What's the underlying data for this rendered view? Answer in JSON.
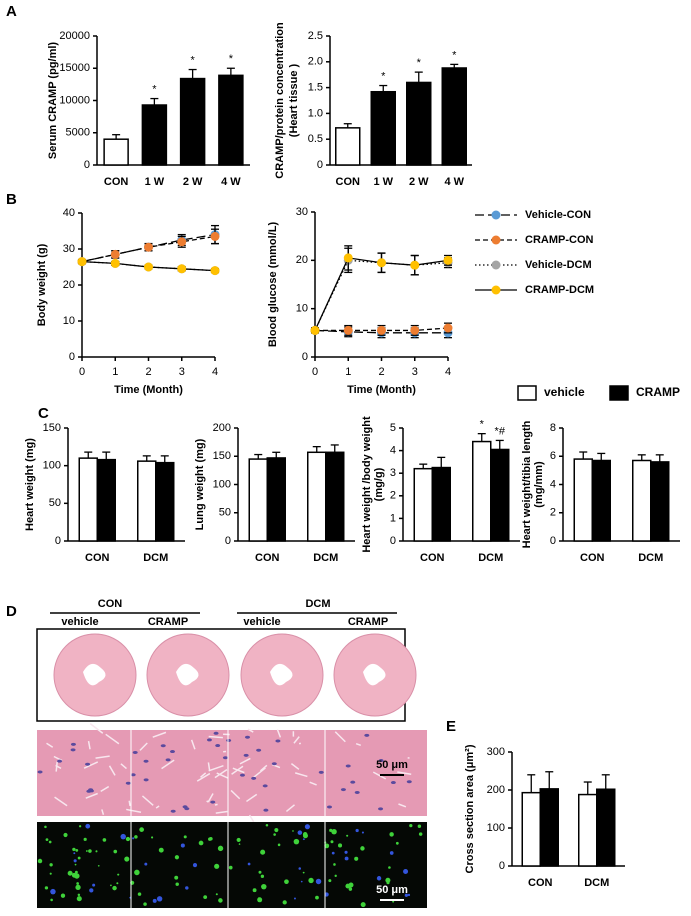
{
  "panels": [
    "A",
    "B",
    "C",
    "D",
    "E"
  ],
  "chart_data": [
    {
      "type": "bar",
      "ylabel": [
        "Serum CRAMP (pg/ml)"
      ],
      "categories": [
        "CON",
        "1 W",
        "2 W",
        "4 W"
      ],
      "values": [
        4000,
        9300,
        13400,
        13900
      ],
      "errors": [
        700,
        1000,
        1400,
        1100
      ],
      "colors": [
        "#ffffff",
        "#000000",
        "#000000",
        "#000000"
      ],
      "sig_labels": [
        null,
        "*",
        "*",
        "*"
      ],
      "ylim": [
        0,
        20000
      ],
      "yticks": [
        0,
        5000,
        10000,
        15000,
        20000
      ]
    },
    {
      "type": "bar",
      "ylabel": [
        "CRAMP/protein concentration",
        "(Heart tissue )"
      ],
      "categories": [
        "CON",
        "1 W",
        "2 W",
        "4 W"
      ],
      "values": [
        0.72,
        1.42,
        1.6,
        1.88
      ],
      "errors": [
        0.08,
        0.12,
        0.2,
        0.07
      ],
      "colors": [
        "#ffffff",
        "#000000",
        "#000000",
        "#000000"
      ],
      "sig_labels": [
        null,
        "*",
        "*",
        "*"
      ],
      "ylim": [
        0,
        2.5
      ],
      "yticks": [
        0,
        0.5,
        {
          "value": 1,
          "label": "1.0"
        },
        1.5,
        {
          "value": 2,
          "label": "2.0"
        },
        2.5
      ]
    },
    {
      "type": "line",
      "ylabel": [
        "Body weight (g)"
      ],
      "xlabel": "Time (Month)",
      "x": [
        0,
        1,
        2,
        3,
        4
      ],
      "xlim": [
        0,
        4
      ],
      "xticks": [
        0,
        1,
        2,
        3,
        4
      ],
      "ylim": [
        0,
        40
      ],
      "yticks": [
        0,
        10,
        20,
        30,
        40
      ],
      "series": [
        {
          "color": "#5b9bd5",
          "dash": "long-dash",
          "values": [
            26.5,
            28.5,
            30.5,
            32.5,
            34
          ],
          "errors": [
            0.5,
            1,
            1,
            1.5,
            2.5
          ]
        },
        {
          "color": "#ed7d31",
          "dash": "dash",
          "values": [
            26.5,
            28.5,
            30.5,
            32,
            33.5
          ],
          "errors": [
            0.5,
            1,
            1,
            1.5,
            2
          ]
        },
        {
          "color": "#a5a5a5",
          "dash": "dot",
          "values": [
            26.5,
            26,
            25,
            24.5,
            24
          ],
          "errors": [
            0.5,
            0.5,
            0.5,
            0.5,
            0.5
          ]
        },
        {
          "color": "#ffc000",
          "dash": "solid",
          "values": [
            26.5,
            26,
            25,
            24.5,
            24
          ],
          "errors": [
            0.5,
            0.5,
            0.5,
            0.5,
            0.5
          ]
        }
      ]
    },
    {
      "type": "line",
      "ylabel": [
        "Blood glucose (mmol/L)"
      ],
      "xlabel": "Time (Month)",
      "x": [
        0,
        1,
        2,
        3,
        4
      ],
      "xlim": [
        0,
        4
      ],
      "xticks": [
        0,
        1,
        2,
        3,
        4
      ],
      "ylim": [
        0,
        30
      ],
      "yticks": [
        0,
        10,
        20,
        30
      ],
      "legend": "right",
      "series": [
        {
          "name": "Vehicle-CON",
          "color": "#5b9bd5",
          "dash": "long-dash",
          "values": [
            5.5,
            5.2,
            5,
            5,
            5
          ],
          "errors": [
            0.5,
            1,
            1,
            1,
            1
          ]
        },
        {
          "name": "CRAMP-CON",
          "color": "#ed7d31",
          "dash": "dash",
          "values": [
            5.5,
            5.5,
            5.5,
            5.5,
            6
          ],
          "errors": [
            0.5,
            1,
            1,
            1,
            1
          ]
        },
        {
          "name": "Vehicle-DCM",
          "color": "#a5a5a5",
          "dash": "dot",
          "values": [
            5.5,
            20,
            19.5,
            19,
            19.5
          ],
          "errors": [
            0.5,
            2.5,
            2,
            2,
            1
          ]
        },
        {
          "name": "CRAMP-DCM",
          "color": "#ffc000",
          "dash": "solid",
          "values": [
            5.5,
            20.5,
            19.5,
            19,
            20
          ],
          "errors": [
            0.5,
            2.5,
            2,
            2,
            1
          ]
        }
      ]
    },
    {
      "type": "grouped_bar",
      "ylabel": [
        "Heart weight (mg)"
      ],
      "categories": [
        "CON",
        "DCM"
      ],
      "legend": "top-right",
      "ylim": [
        0,
        150
      ],
      "yticks": [
        0,
        50,
        100,
        150
      ],
      "series": [
        {
          "name": "vehicle",
          "color": "#ffffff",
          "values": [
            110,
            106
          ],
          "errors": [
            8,
            7
          ]
        },
        {
          "name": "CRAMP",
          "color": "#000000",
          "values": [
            108,
            104
          ],
          "errors": [
            10,
            9
          ]
        }
      ]
    },
    {
      "type": "grouped_bar",
      "ylabel": [
        "Lung weight (mg)"
      ],
      "categories": [
        "CON",
        "DCM"
      ],
      "ylim": [
        0,
        200
      ],
      "yticks": [
        0,
        50,
        100,
        150,
        200
      ],
      "series": [
        {
          "color": "#ffffff",
          "values": [
            145,
            157
          ],
          "errors": [
            8,
            10
          ]
        },
        {
          "color": "#000000",
          "values": [
            147,
            157
          ],
          "errors": [
            10,
            13
          ]
        }
      ]
    },
    {
      "type": "grouped_bar",
      "ylabel": [
        "Heart weight /body weight",
        "(mg/g)"
      ],
      "categories": [
        "CON",
        "DCM"
      ],
      "ylim": [
        0,
        5
      ],
      "yticks": [
        0,
        1,
        2,
        3,
        4,
        5
      ],
      "series": [
        {
          "color": "#ffffff",
          "values": [
            3.2,
            4.4
          ],
          "errors": [
            0.2,
            0.35
          ],
          "sig_labels": [
            null,
            "*"
          ]
        },
        {
          "color": "#000000",
          "values": [
            3.25,
            4.05
          ],
          "errors": [
            0.45,
            0.4
          ],
          "sig_labels": [
            null,
            "*#"
          ]
        }
      ]
    },
    {
      "type": "grouped_bar",
      "ylabel": [
        "Heart weight/tibia length",
        "(mg/mm)"
      ],
      "categories": [
        "CON",
        "DCM"
      ],
      "ylim": [
        0,
        8
      ],
      "yticks": [
        0,
        2,
        4,
        6,
        8
      ],
      "series": [
        {
          "color": "#ffffff",
          "values": [
            5.8,
            5.7
          ],
          "errors": [
            0.5,
            0.4
          ]
        },
        {
          "color": "#000000",
          "values": [
            5.7,
            5.6
          ],
          "errors": [
            0.5,
            0.5
          ]
        }
      ]
    },
    {
      "type": "grouped_bar",
      "ylabel": [
        "Cross section area (μm²)"
      ],
      "categories": [
        "CON",
        "DCM"
      ],
      "ylim": [
        0,
        300
      ],
      "yticks": [
        0,
        100,
        200,
        300
      ],
      "series": [
        {
          "color": "#ffffff",
          "values": [
            193,
            188
          ],
          "errors": [
            47,
            33
          ]
        },
        {
          "color": "#000000",
          "values": [
            203,
            202
          ],
          "errors": [
            45,
            38
          ]
        }
      ]
    }
  ],
  "histology": {
    "groups": [
      "CON",
      "DCM"
    ],
    "columns": [
      "vehicle",
      "CRAMP",
      "vehicle",
      "CRAMP"
    ],
    "scale_bars": [
      "50 μm",
      "50 μm"
    ]
  }
}
